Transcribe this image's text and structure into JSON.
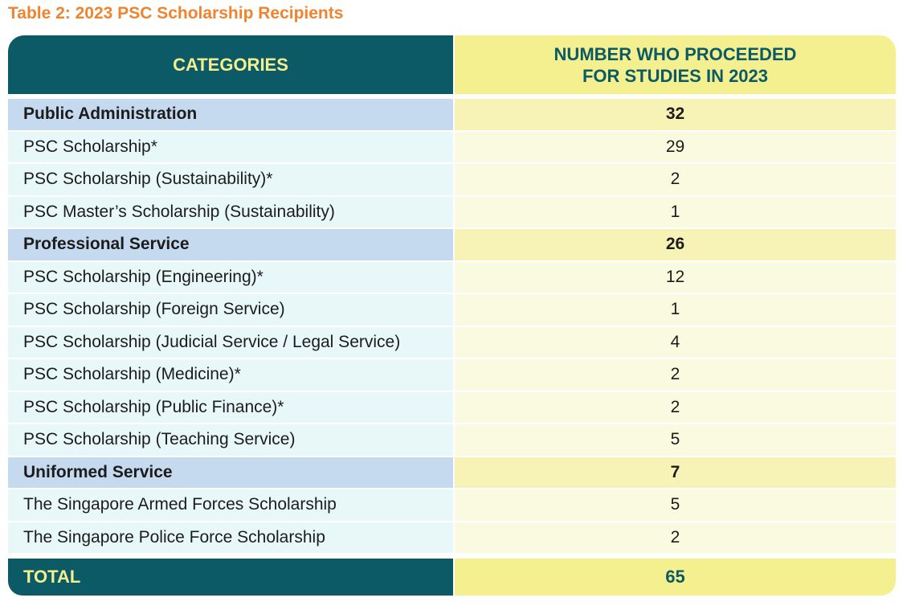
{
  "caption": "Table 2: 2023 PSC Scholarship Recipients",
  "header": {
    "categories_label": "CATEGORIES",
    "number_label_line1": "NUMBER WHO PROCEEDED",
    "number_label_line2": "FOR STUDIES IN 2023"
  },
  "rows": [
    {
      "category": "Public Administration",
      "value": "32",
      "kind": "group"
    },
    {
      "category": "PSC Scholarship*",
      "value": "29",
      "kind": "sub"
    },
    {
      "category": "PSC Scholarship (Sustainability)*",
      "value": "2",
      "kind": "sub"
    },
    {
      "category": "PSC Master’s Scholarship (Sustainability)",
      "value": "1",
      "kind": "sub"
    },
    {
      "category": "Professional Service",
      "value": "26",
      "kind": "group"
    },
    {
      "category": "PSC Scholarship (Engineering)*",
      "value": "12",
      "kind": "sub"
    },
    {
      "category": "PSC Scholarship (Foreign Service)",
      "value": "1",
      "kind": "sub"
    },
    {
      "category": "PSC Scholarship (Judicial Service / Legal Service)",
      "value": "4",
      "kind": "sub"
    },
    {
      "category": "PSC Scholarship (Medicine)*",
      "value": "2",
      "kind": "sub"
    },
    {
      "category": "PSC Scholarship (Public Finance)*",
      "value": "2",
      "kind": "sub"
    },
    {
      "category": "PSC Scholarship (Teaching Service)",
      "value": "5",
      "kind": "sub"
    },
    {
      "category": "Uniformed Service",
      "value": "7",
      "kind": "group"
    },
    {
      "category": "The Singapore Armed Forces Scholarship",
      "value": "5",
      "kind": "sub"
    },
    {
      "category": "The Singapore Police Force Scholarship",
      "value": "2",
      "kind": "sub"
    }
  ],
  "total": {
    "label": "TOTAL",
    "value": "65"
  },
  "colors": {
    "caption": "#f0832d",
    "dark_teal": "#0c5a66",
    "yellow": "#f5f08f",
    "group_blue": "#c5d9ef",
    "sub_cyan": "#e8f7f7"
  }
}
